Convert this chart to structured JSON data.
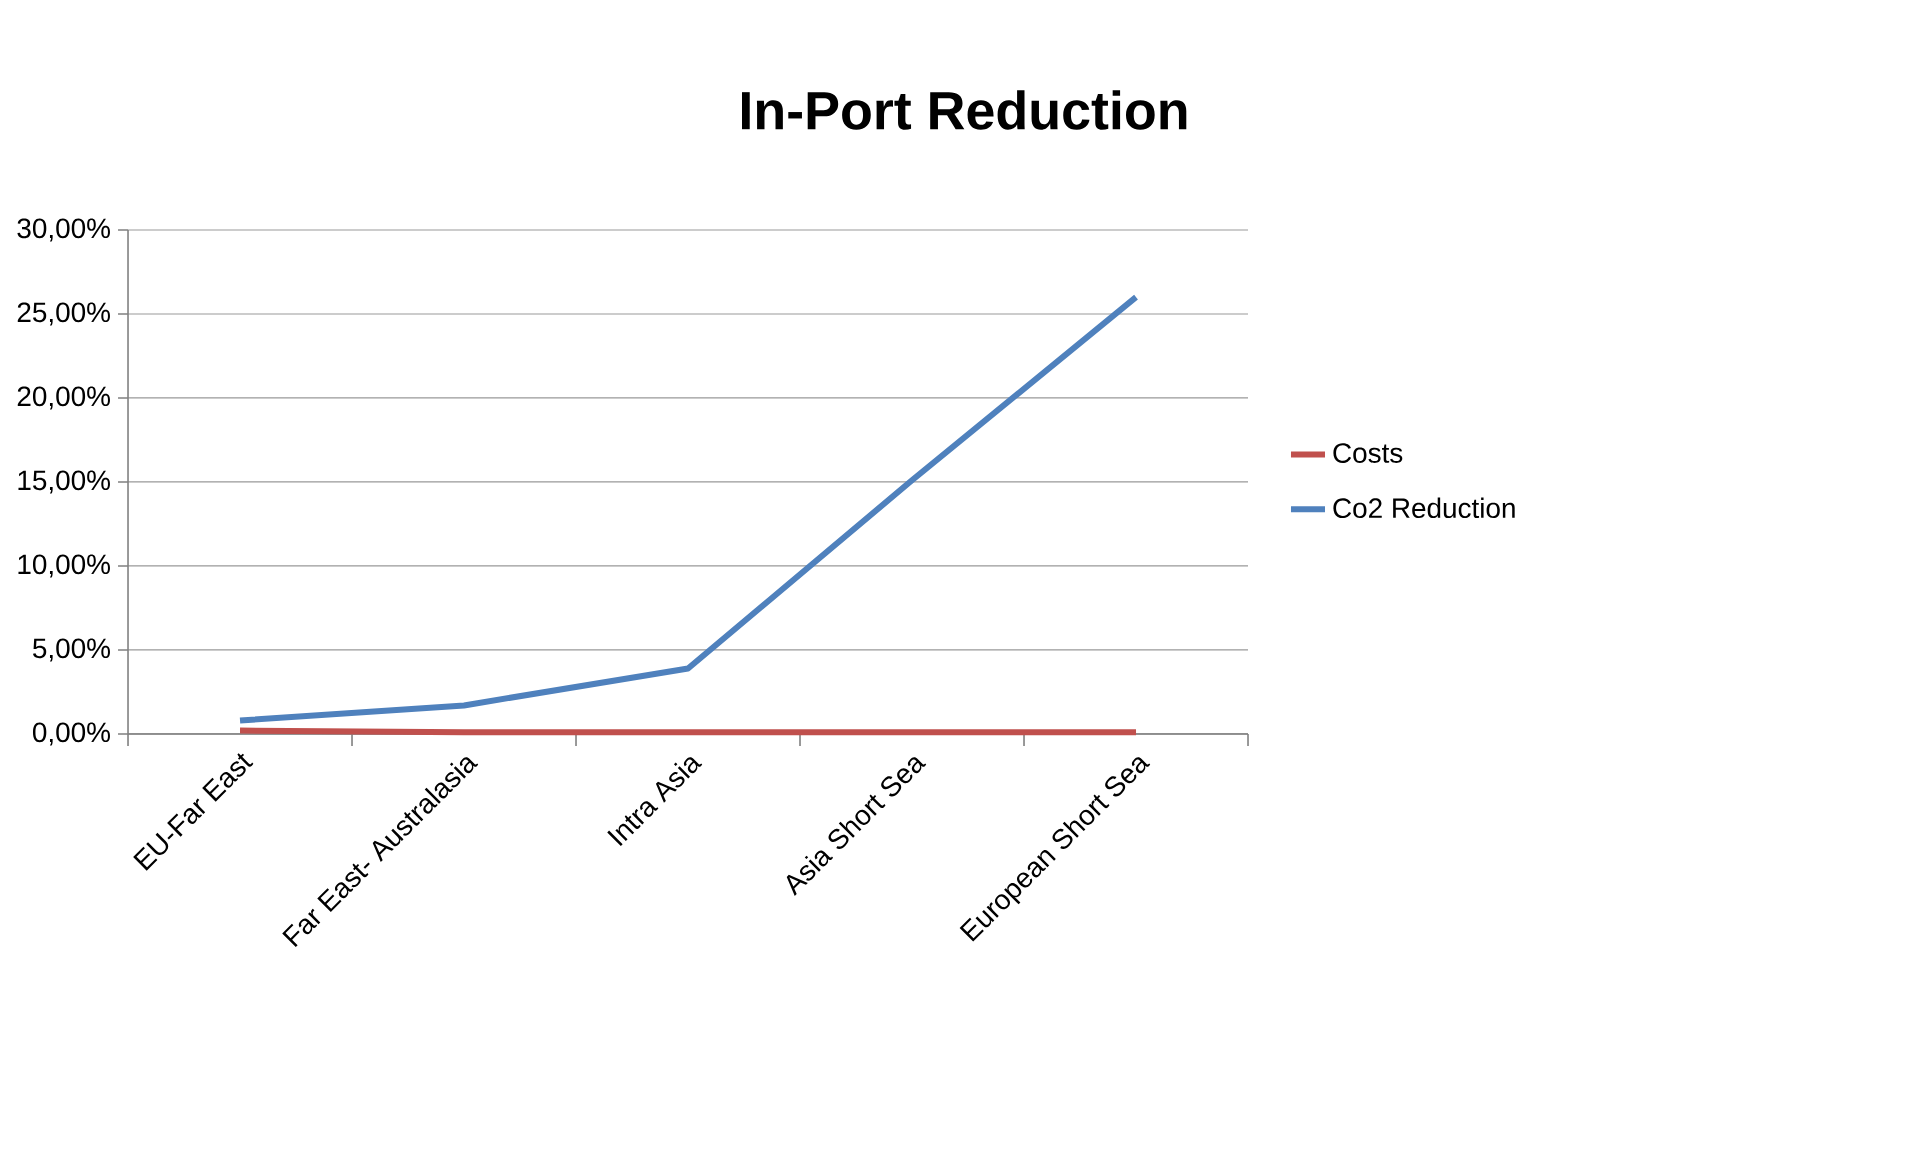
{
  "chart_data": {
    "type": "line",
    "title": "In-Port Reduction",
    "categories": [
      "EU-Far East",
      "Far East- Australasia",
      "Intra Asia",
      "Asia Short Sea",
      "European Short Sea"
    ],
    "series": [
      {
        "name": "Costs",
        "color": "#c0504d",
        "values": [
          0.2,
          0.1,
          0.1,
          0.1,
          0.1
        ]
      },
      {
        "name": "Co2 Reduction",
        "color": "#4f81bd",
        "values": [
          0.8,
          1.7,
          3.9,
          15.1,
          26.0
        ]
      }
    ],
    "ylim": [
      0,
      30
    ],
    "yticks": [
      {
        "value": 0,
        "label": "0,00%"
      },
      {
        "value": 5,
        "label": "5,00%"
      },
      {
        "value": 10,
        "label": "10,00%"
      },
      {
        "value": 15,
        "label": "15,00%"
      },
      {
        "value": 20,
        "label": "20,00%"
      },
      {
        "value": 25,
        "label": "25,00%"
      },
      {
        "value": 30,
        "label": "30,00%"
      }
    ],
    "grid": "y",
    "legend": "right",
    "marker": "none",
    "line_style": "solid"
  }
}
